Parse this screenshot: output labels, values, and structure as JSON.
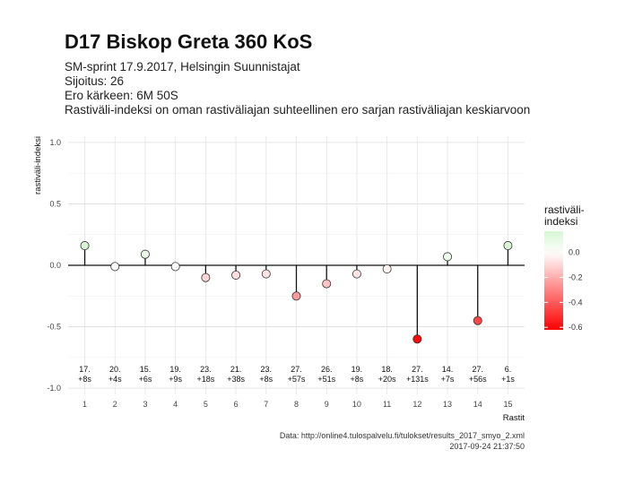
{
  "chart_data": {
    "type": "lollipop",
    "title": "D17 Biskop Greta 360 KoS",
    "subtitle": [
      "SM-sprint 17.9.2017, Helsingin Suunnistajat",
      "Sijoitus: 26",
      "Ero kärkeen: 6M 50S",
      "Rastiväli-indeksi on oman rastiväliajan suhteellinen ero sarjan rastiväliajan keskiarvoon"
    ],
    "xlabel": "Rastit",
    "ylabel": "rastiväli-indeksi",
    "ylim": [
      -1.05,
      1.05
    ],
    "yticks": [
      1.0,
      0.5,
      0.0,
      -0.5,
      -1.0
    ],
    "ytick_labels": [
      "1.0",
      "0.5",
      "0.0",
      "-0.5",
      "-1.0"
    ],
    "x": [
      1,
      2,
      3,
      4,
      5,
      6,
      7,
      8,
      9,
      10,
      11,
      12,
      13,
      14,
      15
    ],
    "values": [
      0.16,
      -0.01,
      0.09,
      -0.01,
      -0.1,
      -0.08,
      -0.07,
      -0.25,
      -0.15,
      -0.07,
      -0.03,
      -0.6,
      0.07,
      -0.45,
      0.16
    ],
    "point_labels": [
      [
        "17.",
        "+8s"
      ],
      [
        "20.",
        "+4s"
      ],
      [
        "15.",
        "+6s"
      ],
      [
        "19.",
        "+9s"
      ],
      [
        "23.",
        "+18s"
      ],
      [
        "21.",
        "+38s"
      ],
      [
        "23.",
        "+8s"
      ],
      [
        "27.",
        "+57s"
      ],
      [
        "26.",
        "+51s"
      ],
      [
        "19.",
        "+8s"
      ],
      [
        "18.",
        "+20s"
      ],
      [
        "27.",
        "+131s"
      ],
      [
        "14.",
        "+7s"
      ],
      [
        "27.",
        "+56s"
      ],
      [
        "6.",
        "+1s"
      ]
    ],
    "legend": {
      "title": [
        "rastiväli-",
        "indeksi"
      ],
      "position": "right",
      "ticks": [
        0.0,
        -0.2,
        -0.4,
        -0.6
      ],
      "tick_labels": [
        "0.0",
        "-0.2",
        "-0.4",
        "-0.6"
      ],
      "range": [
        -0.62,
        0.17
      ],
      "colors": {
        "low": "#ff0000",
        "mid": "#ffffff",
        "high": "#d4f7d0"
      }
    },
    "grid": true,
    "caption": [
      "Data: http://online4.tulospalvelu.fi/tulokset/results_2017_smyo_2.xml",
      "2017-09-24 21:37:50"
    ]
  }
}
